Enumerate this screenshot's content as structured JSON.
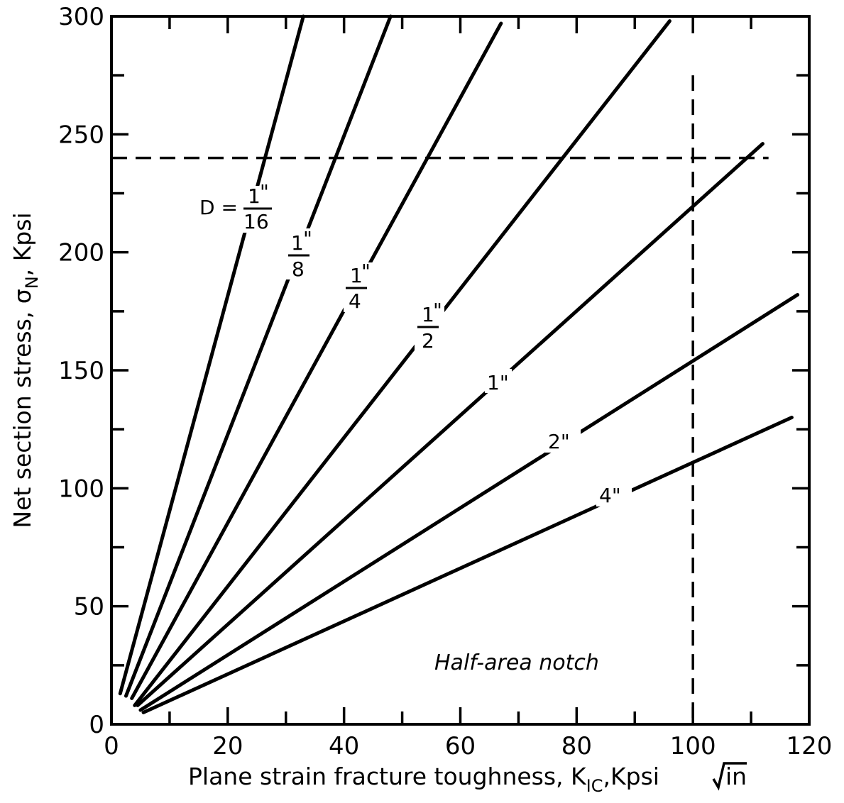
{
  "chart_data": {
    "type": "line",
    "xlabel": "Plane strain fracture toughness, K",
    "xlabel_sub": "IC",
    "xlabel_unit": ",Kpsi",
    "xlabel_radicand": "in",
    "ylabel": "Net section stress, σ",
    "ylabel_sub": "N",
    "ylabel_unit": ", Kpsi",
    "xlim": [
      0,
      120
    ],
    "ylim": [
      0,
      300
    ],
    "x_ticks": [
      0,
      20,
      40,
      60,
      80,
      100,
      120
    ],
    "y_ticks": [
      0,
      50,
      100,
      150,
      200,
      250,
      300
    ],
    "x_tick_labels": [
      "0",
      "20",
      "40",
      "60",
      "80",
      "100",
      "120"
    ],
    "y_tick_labels": [
      "0",
      "50",
      "100",
      "150",
      "200",
      "250",
      "300"
    ],
    "grid": false,
    "series": [
      {
        "label": "D = 1/16\"",
        "x": [
          1.5,
          33
        ],
        "y": [
          13,
          300
        ]
      },
      {
        "label": "1/8\"",
        "x": [
          2.5,
          48
        ],
        "y": [
          12,
          300
        ]
      },
      {
        "label": "1/4\"",
        "x": [
          3.5,
          67
        ],
        "y": [
          11,
          297
        ]
      },
      {
        "label": "1/2\"",
        "x": [
          4,
          96
        ],
        "y": [
          8,
          298
        ]
      },
      {
        "label": "1\"",
        "x": [
          4.5,
          112
        ],
        "y": [
          8,
          246
        ]
      },
      {
        "label": "2\"",
        "x": [
          5,
          118
        ],
        "y": [
          6,
          182
        ]
      },
      {
        "label": "4\"",
        "x": [
          5.5,
          117
        ],
        "y": [
          5,
          130
        ]
      }
    ],
    "reference_lines": [
      {
        "orientation": "horizontal",
        "value": 240,
        "x_range": [
          0,
          113
        ]
      },
      {
        "orientation": "vertical",
        "value": 100,
        "y_range": [
          0,
          275
        ]
      }
    ],
    "annotations": [
      {
        "text": "Half-area notch",
        "x": 87,
        "y": 28
      }
    ]
  }
}
